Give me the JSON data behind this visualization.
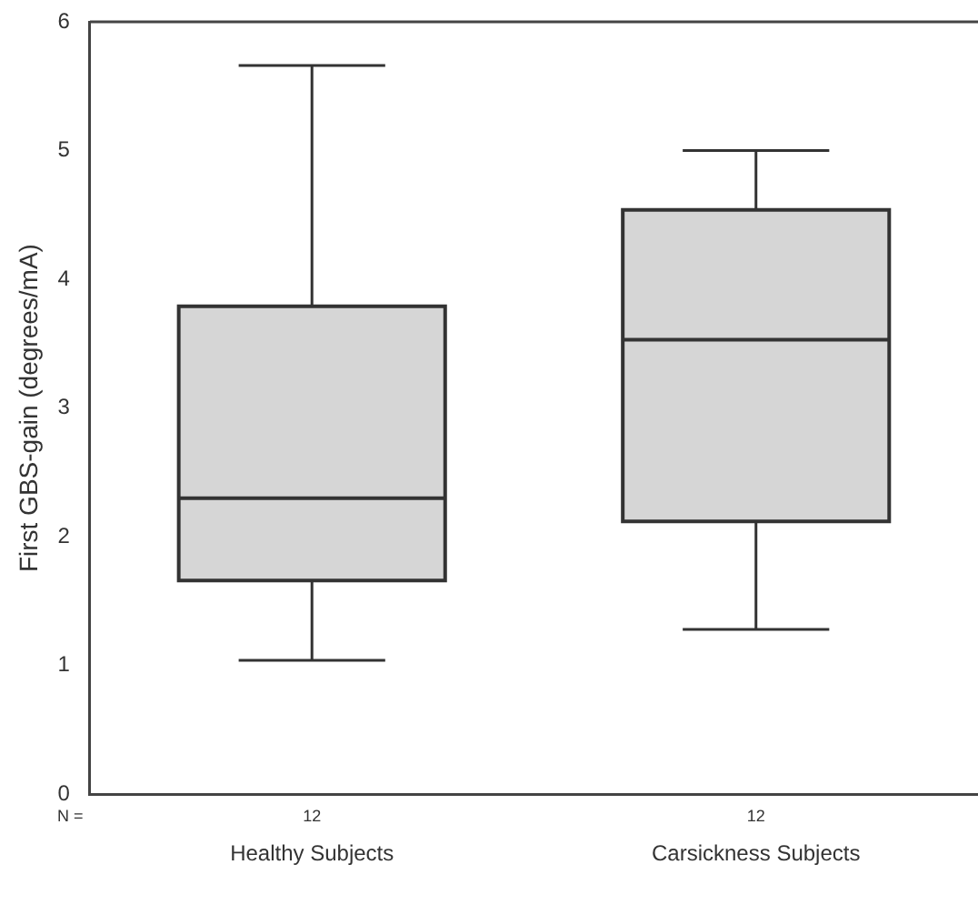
{
  "chart_data": {
    "type": "box",
    "ylabel": "First GBS-gain (degrees/mA)",
    "categories": [
      "Healthy Subjects",
      "Carsickness Subjects"
    ],
    "color": "#d6d6d6",
    "boxes": [
      {
        "low": 1.04,
        "q1": 1.66,
        "median": 2.3,
        "q3": 3.79,
        "high": 5.66
      },
      {
        "low": 1.28,
        "q1": 2.12,
        "median": 3.53,
        "q3": 4.54,
        "high": 5.0
      }
    ],
    "ylim": [
      0,
      6
    ],
    "yticks": [
      0,
      1,
      2,
      3,
      4,
      5,
      6
    ],
    "grid": false,
    "legend": false,
    "annotations": [
      "N =",
      "12",
      "12"
    ]
  }
}
